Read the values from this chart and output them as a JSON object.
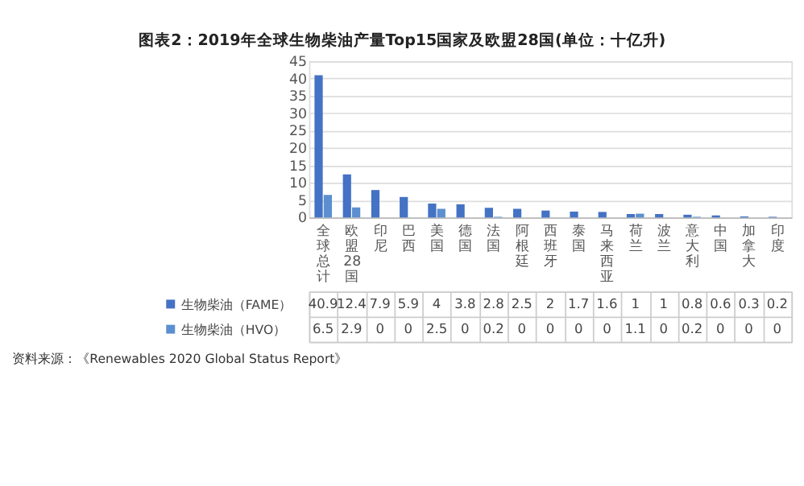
{
  "chart_data": {
    "type": "bar",
    "title": "图表2：2019年全球生物柴油产量Top15国家及欧盟28国(单位：十亿升)",
    "categories": [
      "全球总计",
      "欧盟28国",
      "印尼",
      "巴西",
      "美国",
      "德国",
      "法国",
      "阿根廷",
      "西班牙",
      "泰国",
      "马来西亚",
      "荷兰",
      "波兰",
      "意大利",
      "中国",
      "加拿大",
      "印度"
    ],
    "series": [
      {
        "name": "生物柴油（FAME）",
        "color": "#4472c4",
        "values": [
          40.9,
          12.4,
          7.9,
          5.9,
          4,
          3.8,
          2.8,
          2.5,
          2,
          1.7,
          1.6,
          1,
          1,
          0.8,
          0.6,
          0.3,
          0.2
        ]
      },
      {
        "name": "生物柴油（HVO）",
        "color": "#5b8fd0",
        "values": [
          6.5,
          2.9,
          0,
          0,
          2.5,
          0,
          0.2,
          0,
          0,
          0,
          0,
          1.1,
          0,
          0.2,
          0,
          0,
          0
        ]
      }
    ],
    "ylim": [
      0,
      45
    ],
    "yticks": [
      0,
      5,
      10,
      15,
      20,
      25,
      30,
      35,
      40,
      45
    ],
    "grid": "y",
    "data_labels": true,
    "legend": "bottom",
    "annotations": [
      "资料来源：《Renewables 2020 Global Status Report》"
    ]
  }
}
